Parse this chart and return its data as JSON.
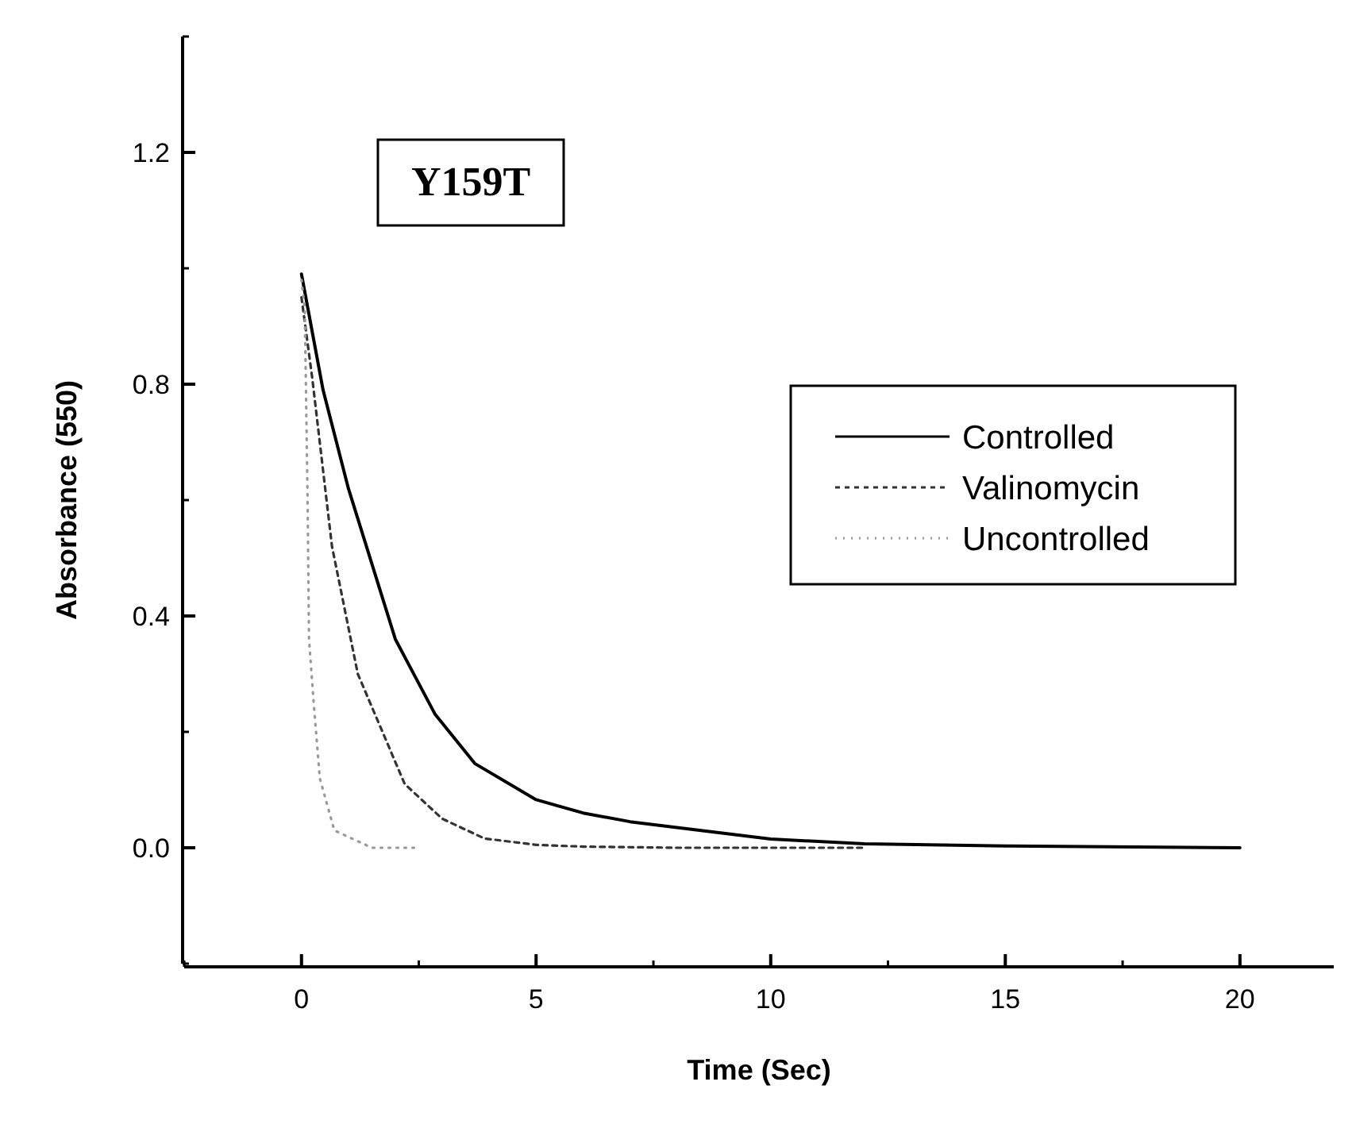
{
  "chart_data": {
    "type": "line",
    "xlabel": "Time (Sec)",
    "ylabel": "Absorbance (550)",
    "annotations": [
      "Y159T"
    ],
    "xlim": [
      -2.5,
      22
    ],
    "xticks": [
      0,
      5,
      10,
      15,
      20
    ],
    "ylim": [
      -0.2,
      1.4
    ],
    "yticks": [
      {
        "value": 0,
        "label": "0.0"
      },
      0.4,
      0.8,
      1.2
    ],
    "legend": "right",
    "grid": false,
    "series": [
      {
        "name": "Controlled",
        "color": "#000000",
        "line_style": "solid",
        "x": [
          0,
          0.46,
          1,
          2,
          2.85,
          3.7,
          5,
          6,
          7,
          8,
          10,
          12,
          15,
          20
        ],
        "values": [
          0.99,
          0.79,
          0.62,
          0.36,
          0.23,
          0.145,
          0.083,
          0.06,
          0.045,
          0.035,
          0.015,
          0.007,
          0.003,
          0
        ]
      },
      {
        "name": "Valinomycin",
        "color": "#333333",
        "line_style": "dashed",
        "x": [
          0,
          0.23,
          0.65,
          1.2,
          2.2,
          3,
          3.9,
          5,
          6,
          8,
          10,
          12
        ],
        "values": [
          0.95,
          0.81,
          0.52,
          0.3,
          0.11,
          0.05,
          0.016,
          0.005,
          0.002,
          0,
          0,
          0
        ]
      },
      {
        "name": "Uncontrolled",
        "color": "#999999",
        "line_style": "dotted",
        "x": [
          0,
          0.07,
          0.13,
          0.16,
          0.26,
          0.39,
          0.7,
          1.5,
          2.5
        ],
        "values": [
          0.98,
          0.93,
          0.6,
          0.36,
          0.25,
          0.12,
          0.03,
          0,
          0
        ]
      }
    ]
  }
}
